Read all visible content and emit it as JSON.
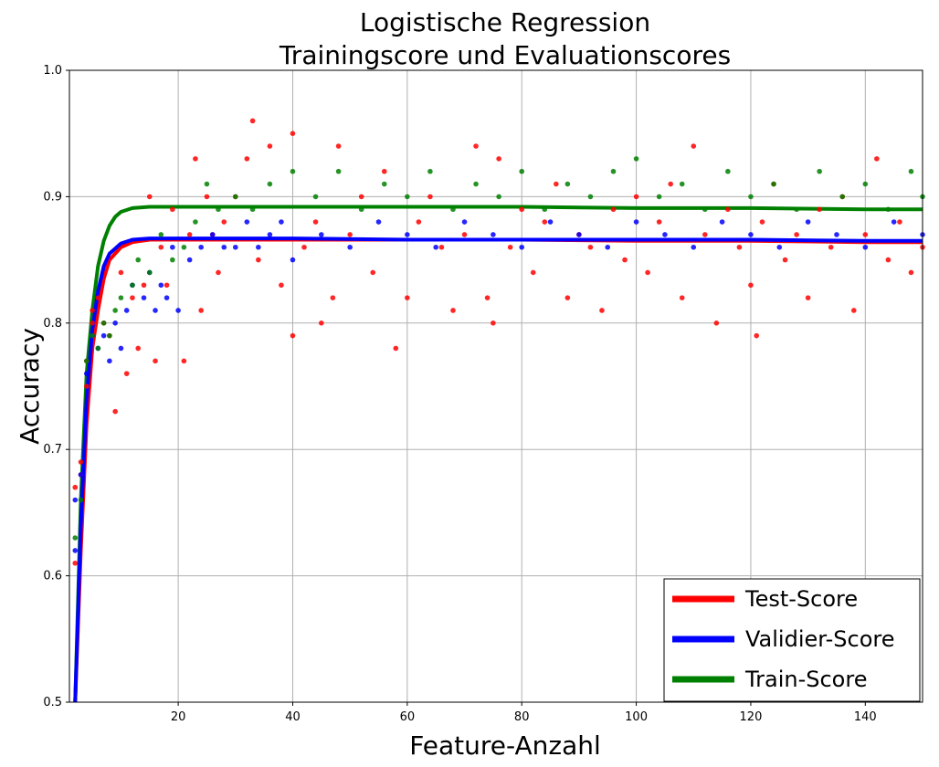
{
  "chart_data": {
    "type": "scatter",
    "title": "Logistische Regression",
    "subtitle": "Trainingscore und Evaluationscores",
    "xlabel": "Feature-Anzahl",
    "ylabel": "Accuracy",
    "xlim": [
      1,
      150
    ],
    "ylim": [
      0.5,
      1.0
    ],
    "xticks": [
      20,
      40,
      60,
      80,
      100,
      120,
      140
    ],
    "yticks": [
      0.5,
      0.6,
      0.7,
      0.8,
      0.9,
      1.0
    ],
    "yticks_labels": [
      "0.5",
      "0.6",
      "0.7",
      "0.8",
      "0.9",
      "1.0"
    ],
    "grid": true,
    "legend_position": "bottom-right",
    "series": [
      {
        "name": "Test-Score",
        "color": "#ff0000",
        "curve": [
          [
            2,
            0.5
          ],
          [
            3,
            0.62
          ],
          [
            4,
            0.72
          ],
          [
            5,
            0.78
          ],
          [
            6,
            0.81
          ],
          [
            7,
            0.835
          ],
          [
            8,
            0.85
          ],
          [
            10,
            0.86
          ],
          [
            12,
            0.864
          ],
          [
            15,
            0.866
          ],
          [
            20,
            0.866
          ],
          [
            40,
            0.866
          ],
          [
            60,
            0.866
          ],
          [
            80,
            0.866
          ],
          [
            100,
            0.865
          ],
          [
            120,
            0.865
          ],
          [
            140,
            0.864
          ],
          [
            150,
            0.864
          ]
        ],
        "points": [
          [
            2,
            0.61
          ],
          [
            2,
            0.67
          ],
          [
            3,
            0.69
          ],
          [
            3,
            0.68
          ],
          [
            4,
            0.75
          ],
          [
            4,
            0.77
          ],
          [
            5,
            0.81
          ],
          [
            5,
            0.8
          ],
          [
            6,
            0.82
          ],
          [
            7,
            0.8
          ],
          [
            8,
            0.79
          ],
          [
            9,
            0.73
          ],
          [
            10,
            0.84
          ],
          [
            11,
            0.76
          ],
          [
            12,
            0.82
          ],
          [
            13,
            0.78
          ],
          [
            14,
            0.83
          ],
          [
            15,
            0.9
          ],
          [
            16,
            0.77
          ],
          [
            17,
            0.86
          ],
          [
            18,
            0.83
          ],
          [
            19,
            0.89
          ],
          [
            21,
            0.77
          ],
          [
            22,
            0.87
          ],
          [
            23,
            0.93
          ],
          [
            24,
            0.81
          ],
          [
            25,
            0.9
          ],
          [
            26,
            0.87
          ],
          [
            27,
            0.84
          ],
          [
            28,
            0.88
          ],
          [
            30,
            0.9
          ],
          [
            32,
            0.93
          ],
          [
            33,
            0.96
          ],
          [
            34,
            0.85
          ],
          [
            36,
            0.94
          ],
          [
            38,
            0.83
          ],
          [
            40,
            0.95
          ],
          [
            40,
            0.79
          ],
          [
            42,
            0.86
          ],
          [
            44,
            0.88
          ],
          [
            45,
            0.8
          ],
          [
            47,
            0.82
          ],
          [
            48,
            0.94
          ],
          [
            50,
            0.87
          ],
          [
            52,
            0.9
          ],
          [
            54,
            0.84
          ],
          [
            56,
            0.92
          ],
          [
            58,
            0.78
          ],
          [
            60,
            0.82
          ],
          [
            62,
            0.88
          ],
          [
            64,
            0.9
          ],
          [
            66,
            0.86
          ],
          [
            68,
            0.81
          ],
          [
            70,
            0.87
          ],
          [
            72,
            0.94
          ],
          [
            74,
            0.82
          ],
          [
            75,
            0.8
          ],
          [
            76,
            0.93
          ],
          [
            78,
            0.86
          ],
          [
            80,
            0.89
          ],
          [
            82,
            0.84
          ],
          [
            84,
            0.88
          ],
          [
            86,
            0.91
          ],
          [
            88,
            0.82
          ],
          [
            90,
            0.87
          ],
          [
            92,
            0.86
          ],
          [
            94,
            0.81
          ],
          [
            96,
            0.89
          ],
          [
            98,
            0.85
          ],
          [
            100,
            0.9
          ],
          [
            102,
            0.84
          ],
          [
            104,
            0.88
          ],
          [
            106,
            0.91
          ],
          [
            108,
            0.82
          ],
          [
            110,
            0.94
          ],
          [
            112,
            0.87
          ],
          [
            114,
            0.8
          ],
          [
            116,
            0.89
          ],
          [
            118,
            0.86
          ],
          [
            120,
            0.83
          ],
          [
            121,
            0.79
          ],
          [
            122,
            0.88
          ],
          [
            124,
            0.91
          ],
          [
            126,
            0.85
          ],
          [
            128,
            0.87
          ],
          [
            130,
            0.82
          ],
          [
            132,
            0.89
          ],
          [
            134,
            0.86
          ],
          [
            136,
            0.9
          ],
          [
            138,
            0.81
          ],
          [
            140,
            0.87
          ],
          [
            142,
            0.93
          ],
          [
            144,
            0.85
          ],
          [
            146,
            0.88
          ],
          [
            148,
            0.84
          ],
          [
            150,
            0.86
          ]
        ]
      },
      {
        "name": "Validier-Score",
        "color": "#0000ff",
        "curve": [
          [
            2,
            0.5
          ],
          [
            3,
            0.64
          ],
          [
            4,
            0.74
          ],
          [
            5,
            0.795
          ],
          [
            6,
            0.825
          ],
          [
            7,
            0.845
          ],
          [
            8,
            0.855
          ],
          [
            10,
            0.863
          ],
          [
            12,
            0.866
          ],
          [
            15,
            0.867
          ],
          [
            20,
            0.867
          ],
          [
            40,
            0.867
          ],
          [
            60,
            0.866
          ],
          [
            80,
            0.866
          ],
          [
            100,
            0.866
          ],
          [
            120,
            0.866
          ],
          [
            140,
            0.865
          ],
          [
            150,
            0.865
          ]
        ],
        "points": [
          [
            2,
            0.62
          ],
          [
            2,
            0.66
          ],
          [
            3,
            0.68
          ],
          [
            4,
            0.76
          ],
          [
            5,
            0.79
          ],
          [
            6,
            0.78
          ],
          [
            7,
            0.79
          ],
          [
            8,
            0.77
          ],
          [
            9,
            0.8
          ],
          [
            10,
            0.78
          ],
          [
            11,
            0.81
          ],
          [
            12,
            0.83
          ],
          [
            14,
            0.82
          ],
          [
            15,
            0.84
          ],
          [
            16,
            0.81
          ],
          [
            17,
            0.83
          ],
          [
            18,
            0.82
          ],
          [
            19,
            0.86
          ],
          [
            20,
            0.81
          ],
          [
            22,
            0.85
          ],
          [
            24,
            0.86
          ],
          [
            26,
            0.87
          ],
          [
            28,
            0.86
          ],
          [
            30,
            0.86
          ],
          [
            32,
            0.88
          ],
          [
            34,
            0.86
          ],
          [
            36,
            0.87
          ],
          [
            38,
            0.88
          ],
          [
            40,
            0.85
          ],
          [
            45,
            0.87
          ],
          [
            50,
            0.86
          ],
          [
            55,
            0.88
          ],
          [
            60,
            0.87
          ],
          [
            65,
            0.86
          ],
          [
            70,
            0.88
          ],
          [
            75,
            0.87
          ],
          [
            80,
            0.86
          ],
          [
            85,
            0.88
          ],
          [
            90,
            0.87
          ],
          [
            95,
            0.86
          ],
          [
            100,
            0.88
          ],
          [
            105,
            0.87
          ],
          [
            110,
            0.86
          ],
          [
            115,
            0.88
          ],
          [
            120,
            0.87
          ],
          [
            125,
            0.86
          ],
          [
            130,
            0.88
          ],
          [
            135,
            0.87
          ],
          [
            140,
            0.86
          ],
          [
            145,
            0.88
          ],
          [
            150,
            0.87
          ]
        ]
      },
      {
        "name": "Train-Score",
        "color": "#008000",
        "curve": [
          [
            2,
            0.5
          ],
          [
            3,
            0.66
          ],
          [
            4,
            0.76
          ],
          [
            5,
            0.81
          ],
          [
            6,
            0.845
          ],
          [
            7,
            0.865
          ],
          [
            8,
            0.877
          ],
          [
            9,
            0.884
          ],
          [
            10,
            0.888
          ],
          [
            12,
            0.891
          ],
          [
            15,
            0.892
          ],
          [
            20,
            0.892
          ],
          [
            40,
            0.892
          ],
          [
            60,
            0.892
          ],
          [
            80,
            0.892
          ],
          [
            100,
            0.891
          ],
          [
            120,
            0.891
          ],
          [
            140,
            0.89
          ],
          [
            150,
            0.89
          ]
        ],
        "points": [
          [
            2,
            0.63
          ],
          [
            3,
            0.66
          ],
          [
            4,
            0.77
          ],
          [
            5,
            0.79
          ],
          [
            6,
            0.78
          ],
          [
            7,
            0.8
          ],
          [
            8,
            0.79
          ],
          [
            9,
            0.81
          ],
          [
            10,
            0.82
          ],
          [
            12,
            0.83
          ],
          [
            13,
            0.85
          ],
          [
            15,
            0.84
          ],
          [
            17,
            0.87
          ],
          [
            19,
            0.85
          ],
          [
            21,
            0.86
          ],
          [
            23,
            0.88
          ],
          [
            25,
            0.91
          ],
          [
            27,
            0.89
          ],
          [
            30,
            0.9
          ],
          [
            33,
            0.89
          ],
          [
            36,
            0.91
          ],
          [
            40,
            0.92
          ],
          [
            44,
            0.9
          ],
          [
            48,
            0.92
          ],
          [
            52,
            0.89
          ],
          [
            56,
            0.91
          ],
          [
            60,
            0.9
          ],
          [
            64,
            0.92
          ],
          [
            68,
            0.89
          ],
          [
            72,
            0.91
          ],
          [
            76,
            0.9
          ],
          [
            80,
            0.92
          ],
          [
            84,
            0.89
          ],
          [
            88,
            0.91
          ],
          [
            92,
            0.9
          ],
          [
            96,
            0.92
          ],
          [
            100,
            0.93
          ],
          [
            104,
            0.9
          ],
          [
            108,
            0.91
          ],
          [
            112,
            0.89
          ],
          [
            116,
            0.92
          ],
          [
            120,
            0.9
          ],
          [
            124,
            0.91
          ],
          [
            128,
            0.89
          ],
          [
            132,
            0.92
          ],
          [
            136,
            0.9
          ],
          [
            140,
            0.91
          ],
          [
            144,
            0.89
          ],
          [
            148,
            0.92
          ],
          [
            150,
            0.9
          ]
        ]
      }
    ]
  }
}
